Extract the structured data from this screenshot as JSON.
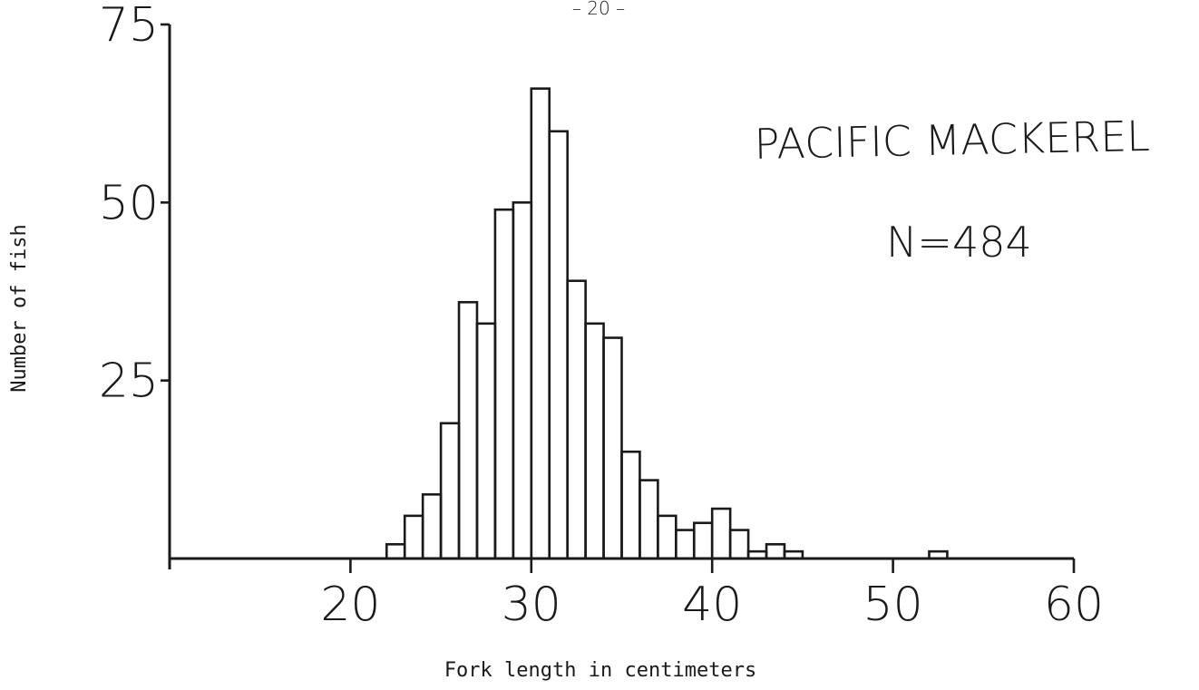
{
  "page_number": "– 20 –",
  "chart_data": {
    "type": "bar",
    "title": "",
    "xlabel": "Fork length in centimeters",
    "ylabel": "Number of fish",
    "xlim": [
      10,
      60
    ],
    "ylim": [
      0,
      75
    ],
    "x_ticks": [
      20,
      30,
      40,
      50,
      60
    ],
    "y_ticks": [
      25,
      50,
      75
    ],
    "grid": false,
    "bin_width": 1,
    "bins": [
      {
        "x0": 22,
        "x1": 23,
        "count": 2
      },
      {
        "x0": 23,
        "x1": 24,
        "count": 6
      },
      {
        "x0": 24,
        "x1": 25,
        "count": 9
      },
      {
        "x0": 25,
        "x1": 26,
        "count": 19
      },
      {
        "x0": 26,
        "x1": 27,
        "count": 36
      },
      {
        "x0": 27,
        "x1": 28,
        "count": 33
      },
      {
        "x0": 28,
        "x1": 29,
        "count": 49
      },
      {
        "x0": 29,
        "x1": 30,
        "count": 50
      },
      {
        "x0": 30,
        "x1": 31,
        "count": 66
      },
      {
        "x0": 31,
        "x1": 32,
        "count": 60
      },
      {
        "x0": 32,
        "x1": 33,
        "count": 39
      },
      {
        "x0": 33,
        "x1": 34,
        "count": 33
      },
      {
        "x0": 34,
        "x1": 35,
        "count": 31
      },
      {
        "x0": 35,
        "x1": 36,
        "count": 15
      },
      {
        "x0": 36,
        "x1": 37,
        "count": 11
      },
      {
        "x0": 37,
        "x1": 38,
        "count": 6
      },
      {
        "x0": 38,
        "x1": 39,
        "count": 4
      },
      {
        "x0": 39,
        "x1": 40,
        "count": 5
      },
      {
        "x0": 40,
        "x1": 41,
        "count": 7
      },
      {
        "x0": 41,
        "x1": 42,
        "count": 4
      },
      {
        "x0": 42,
        "x1": 43,
        "count": 1
      },
      {
        "x0": 43,
        "x1": 44,
        "count": 2
      },
      {
        "x0": 44,
        "x1": 45,
        "count": 1
      },
      {
        "x0": 52,
        "x1": 53,
        "count": 1
      }
    ],
    "annotations": {
      "species": "PACIFIC MACKEREL",
      "sample_size": "N=484"
    },
    "colors": {
      "ink": "#1a1a1a",
      "background": "#ffffff"
    }
  }
}
